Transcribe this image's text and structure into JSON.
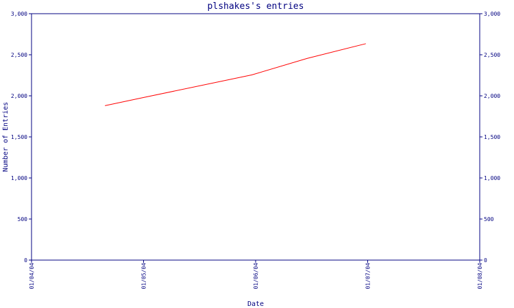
{
  "chart_data": {
    "type": "line",
    "title": "plshakes's entries",
    "xlabel": "Date",
    "ylabel": "Number of Entries",
    "x_ticks": [
      "01/04/04",
      "01/05/04",
      "01/06/04",
      "01/07/04",
      "01/08/04"
    ],
    "y_ticks": [
      "0",
      "500",
      "1,000",
      "1,500",
      "2,000",
      "2,500",
      "3,000"
    ],
    "ylim": [
      0,
      3000
    ],
    "xlim": [
      "2004-04-01",
      "2004-08-01"
    ],
    "grid": false,
    "series": [
      {
        "color": "#ff0000",
        "points": [
          {
            "x": "2004-04-21",
            "y": 1880
          },
          {
            "x": "2004-05-01",
            "y": 1975
          },
          {
            "x": "2004-05-31",
            "y": 2255
          },
          {
            "x": "2004-06-15",
            "y": 2455
          },
          {
            "x": "2004-07-01",
            "y": 2635
          }
        ]
      }
    ],
    "colors": {
      "axis": "#000080",
      "line": "#ff0000"
    }
  }
}
